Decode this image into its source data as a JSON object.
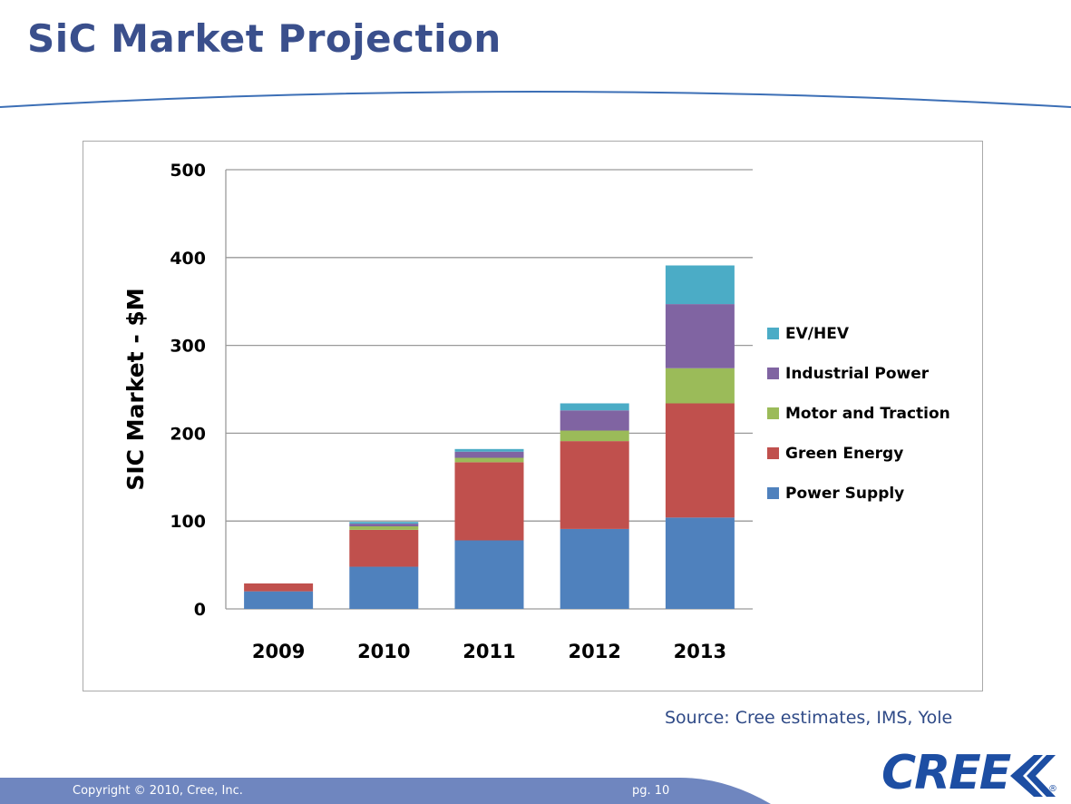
{
  "slide": {
    "title": "SiC Market Projection",
    "source": "Source: Cree estimates, IMS, Yole",
    "copyright": "Copyright © 2010, Cree, Inc.",
    "page": "pg. 10",
    "logo_text": "CREE",
    "logo_mark": "®"
  },
  "colors": {
    "title": "#3a4f8c",
    "footer": "#6f86bf",
    "logo": "#1d4ea3"
  },
  "chart_data": {
    "type": "bar",
    "stacked": true,
    "title": "",
    "xlabel": "",
    "ylabel": "SIC Market - $M",
    "ylim": [
      0,
      500
    ],
    "yticks": [
      0,
      100,
      200,
      300,
      400,
      500
    ],
    "grid": true,
    "legend_position": "right",
    "categories": [
      "2009",
      "2010",
      "2011",
      "2012",
      "2013"
    ],
    "series": [
      {
        "name": "Power Supply",
        "color": "#4f81bd",
        "values": [
          20,
          48,
          78,
          91,
          104
        ]
      },
      {
        "name": "Green Energy",
        "color": "#c0504d",
        "values": [
          9,
          42,
          89,
          100,
          130
        ]
      },
      {
        "name": "Motor and Traction",
        "color": "#9bbb59",
        "values": [
          0,
          4,
          5,
          12,
          40
        ]
      },
      {
        "name": "Industrial Power",
        "color": "#8064a2",
        "values": [
          0,
          3,
          7,
          23,
          73
        ]
      },
      {
        "name": "EV/HEV",
        "color": "#4bacc6",
        "values": [
          0,
          2,
          3,
          8,
          44
        ]
      }
    ]
  }
}
